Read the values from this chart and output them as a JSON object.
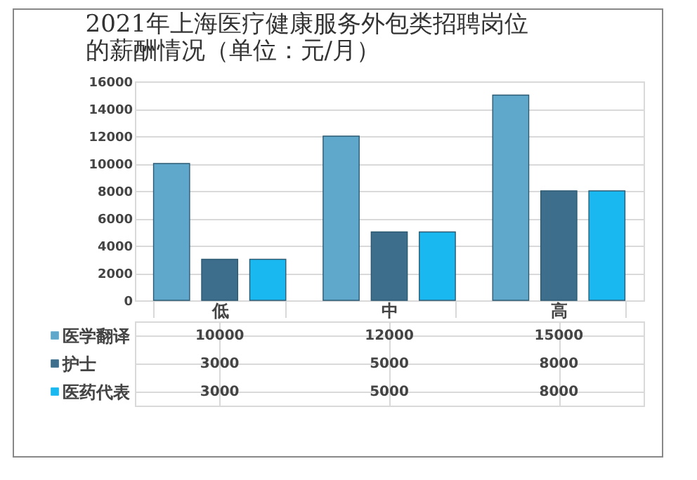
{
  "chart_data": {
    "type": "bar",
    "title": "2021年上海医疗健康服务外包类招聘岗位的薪酬情况（单位：元/月）",
    "legend": "bottom left",
    "categories": [
      "低",
      "中",
      "高"
    ],
    "series": [
      {
        "name": "医学翻译",
        "color": "#5fa8cc",
        "values": [
          10000,
          12000,
          15000
        ]
      },
      {
        "name": "护士",
        "color": "#3d6e8c",
        "values": [
          3000,
          5000,
          8000
        ]
      },
      {
        "name": "医药代表",
        "color": "#1ab8f0",
        "values": [
          3000,
          5000,
          8000
        ]
      }
    ],
    "ylim": [
      0,
      16000
    ],
    "yticks": [
      0,
      2000,
      4000,
      6000,
      8000,
      10000,
      12000,
      14000,
      16000
    ],
    "grid": "y",
    "data_labels": true
  }
}
